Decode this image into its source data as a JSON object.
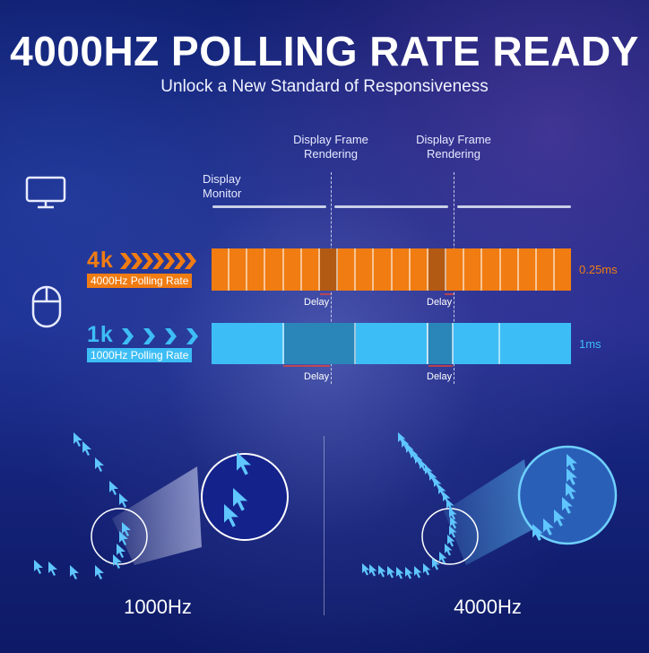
{
  "header": {
    "title": "4000HZ POLLING RATE READY",
    "subtitle": "Unlock a New Standard of Responsiveness"
  },
  "timeline": {
    "monitor_label": "Display\nMonitor",
    "frame_label_1": "Display Frame\nRendering",
    "frame_label_2": "Display Frame\nRendering"
  },
  "rate_4k": {
    "big": "4k",
    "label": "4000Hz Polling Rate",
    "value": "0.25ms",
    "delay_1": "Delay",
    "delay_2": "Delay",
    "color": "#f07c12"
  },
  "rate_1k": {
    "big": "1k",
    "label": "1000Hz Polling Rate",
    "value": "1ms",
    "delay_1": "Delay",
    "delay_2": "Delay",
    "color": "#3dbdf5"
  },
  "icons": {
    "monitor": "monitor-icon",
    "mouse": "mouse-icon"
  },
  "comparison": {
    "left_label": "1000Hz",
    "right_label": "4000Hz"
  }
}
